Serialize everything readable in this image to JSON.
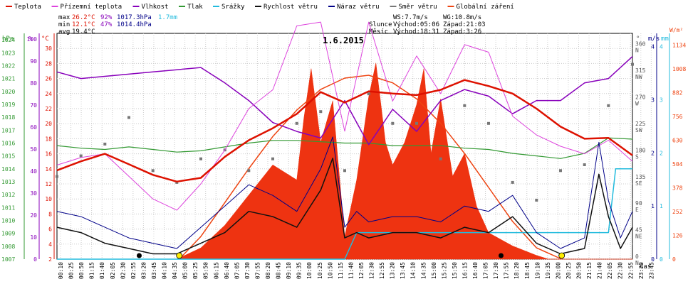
{
  "chart_data": {
    "type": "line",
    "title": "1.6.2015",
    "legend": [
      {
        "label": "Teplota",
        "color": "#dd1100"
      },
      {
        "label": "Přízemní teplota",
        "color": "#dd44dd"
      },
      {
        "label": "Vlhkost",
        "color": "#8800bb"
      },
      {
        "label": "Tlak",
        "color": "#339933"
      },
      {
        "label": "Srážky",
        "color": "#22bbdd"
      },
      {
        "label": "Rychlost větru",
        "color": "#111111"
      },
      {
        "label": "Náraz větru",
        "color": "#000088"
      },
      {
        "label": "Směr větru",
        "color": "#777777"
      },
      {
        "label": "Globální záření",
        "color": "#ee4411"
      }
    ],
    "stats": {
      "max": {
        "label": "max",
        "temp": "26.2°C",
        "hum": "92%",
        "press": "1017.3hPa",
        "rain": "1.7mm"
      },
      "min": {
        "label": "min",
        "temp": "12.1°C",
        "hum": "47%",
        "press": "1014.4hPa"
      },
      "avg": {
        "label": "avg",
        "temp": "19.4°C"
      }
    },
    "info": {
      "ws": "WS:7.7m/s",
      "wg": "WG:10.8m/s",
      "sun_label": "Slunce",
      "sun_rise": "Východ:05:06",
      "sun_set": "Západ:21:03",
      "moon_label": "Měsíc",
      "moon_rise": "Východ:18:31",
      "moon_set": "Západ:3:26"
    },
    "axes": {
      "hpa": {
        "unit": "hPa",
        "ticks": [
          "1007",
          "1008",
          "1009",
          "1010",
          "1011",
          "1012",
          "1013",
          "1014",
          "1015",
          "1016",
          "1017",
          "1018",
          "1019",
          "1020",
          "1021",
          "1022",
          "1023",
          "1024"
        ],
        "range": [
          1007,
          1024.5
        ]
      },
      "pct": {
        "unit": "%",
        "ticks": [
          "0",
          "10",
          "20",
          "30",
          "40",
          "50",
          "60",
          "70",
          "80",
          "90",
          "100"
        ],
        "range": [
          0,
          102.5
        ]
      },
      "temp": {
        "unit": "°C",
        "ticks": [
          "2",
          "4",
          "6",
          "8",
          "10",
          "12",
          "14",
          "16",
          "18",
          "20",
          "22",
          "24",
          "26",
          "28",
          "30"
        ],
        "range": [
          2,
          32
        ]
      },
      "dir": {
        "unit": "°",
        "ticks": [
          [
            "0",
            "N"
          ],
          [
            "45",
            "NE"
          ],
          [
            "90",
            "E"
          ],
          [
            "135",
            "SE"
          ],
          [
            "180",
            "S"
          ],
          [
            "225",
            "SW"
          ],
          [
            "270",
            "W"
          ],
          [
            "315",
            "NW"
          ],
          [
            "360",
            "N"
          ]
        ],
        "range": [
          0,
          382.5
        ]
      },
      "wind": {
        "unit": "m/s",
        "ticks": [
          "0",
          "1",
          "2",
          "3",
          "4"
        ],
        "range": [
          0,
          4.25
        ]
      },
      "rain": {
        "unit": "mm",
        "ticks": [
          "0",
          "1",
          "2",
          "3",
          "4"
        ],
        "range": [
          0,
          4.25
        ]
      },
      "rad": {
        "unit": "W/m²",
        "ticks": [
          "0",
          "126",
          "252",
          "378",
          "504",
          "630",
          "756",
          "882",
          "1008",
          "1134"
        ],
        "range": [
          0,
          1197
        ]
      },
      "x_label": "čas",
      "x_ticks": [
        "00:10",
        "00:25",
        "00:50",
        "01:15",
        "01:40",
        "02:05",
        "02:30",
        "02:55",
        "03:20",
        "03:45",
        "04:10",
        "04:35",
        "05:00",
        "05:25",
        "05:50",
        "06:15",
        "06:40",
        "07:05",
        "07:30",
        "07:55",
        "08:20",
        "08:45",
        "09:10",
        "09:35",
        "10:00",
        "10:25",
        "10:50",
        "11:15",
        "11:40",
        "12:05",
        "12:30",
        "12:55",
        "13:20",
        "13:45",
        "14:10",
        "14:35",
        "15:00",
        "15:25",
        "15:50",
        "16:15",
        "16:40",
        "17:05",
        "17:30",
        "17:55",
        "18:20",
        "18:45",
        "19:10",
        "19:35",
        "20:00",
        "20:25",
        "20:50",
        "21:15",
        "21:40",
        "22:05",
        "22:30",
        "22:55",
        "23:20",
        "23:45"
      ]
    },
    "series": {
      "temperature": {
        "x_hours": [
          0,
          1,
          2,
          3,
          4,
          5,
          6,
          7,
          8,
          9,
          10,
          11,
          12,
          13,
          14,
          15,
          16,
          17,
          18,
          19,
          20,
          21,
          22,
          23,
          24
        ],
        "values": [
          13.8,
          15.0,
          16.0,
          14.6,
          13.2,
          12.3,
          12.8,
          15.6,
          17.8,
          19.4,
          21.3,
          24.2,
          22.8,
          24.3,
          24.0,
          23.8,
          24.5,
          25.8,
          25.0,
          24.0,
          22.0,
          19.6,
          18.0,
          18.1,
          15.8
        ]
      },
      "ground_temperature": {
        "x_hours": [
          0,
          1,
          2,
          3,
          4,
          5,
          6,
          7,
          8,
          9,
          10,
          11,
          12,
          13,
          14,
          15,
          16,
          17,
          18,
          19,
          20,
          21,
          22,
          23,
          24
        ],
        "values": [
          14.5,
          15.5,
          16.0,
          13.0,
          10.0,
          8.5,
          12.0,
          16.5,
          22.0,
          24.5,
          33.0,
          33.5,
          19.0,
          33.5,
          23.0,
          29.0,
          24.0,
          30.5,
          29.5,
          21.0,
          18.5,
          17.0,
          16.0,
          17.8,
          15.0
        ]
      },
      "humidity": {
        "x_hours": [
          0,
          1,
          2,
          3,
          4,
          5,
          6,
          7,
          8,
          9,
          10,
          11,
          12,
          13,
          14,
          15,
          16,
          17,
          18,
          19,
          20,
          21,
          22,
          23,
          24
        ],
        "values": [
          85,
          82,
          83,
          84,
          85,
          86,
          87,
          80,
          72,
          62,
          58,
          55,
          72,
          52,
          68,
          58,
          72,
          77,
          74,
          66,
          72,
          72,
          80,
          82,
          92
        ]
      },
      "pressure": {
        "x_hours": [
          0,
          1,
          2,
          3,
          4,
          5,
          6,
          7,
          8,
          9,
          10,
          11,
          12,
          13,
          14,
          15,
          16,
          17,
          18,
          19,
          20,
          21,
          22,
          23,
          24
        ],
        "values": [
          1015.8,
          1015.6,
          1015.5,
          1015.7,
          1015.5,
          1015.3,
          1015.4,
          1015.7,
          1016.0,
          1016.2,
          1016.2,
          1016.1,
          1016.0,
          1016.0,
          1015.8,
          1015.8,
          1015.8,
          1015.6,
          1015.5,
          1015.2,
          1015.0,
          1014.8,
          1015.2,
          1016.4,
          1016.3
        ]
      },
      "rain": {
        "x_hours": [
          0,
          6,
          12,
          12.5,
          22.5,
          23,
          23.3,
          24
        ],
        "values": [
          0,
          0,
          0,
          0.5,
          0.5,
          0.5,
          1.7,
          1.7
        ]
      },
      "wind_speed": {
        "x_hours": [
          0,
          1,
          2,
          3,
          4,
          5,
          6,
          7,
          8,
          9,
          10,
          11,
          11.5,
          12,
          12.5,
          13,
          14,
          15,
          16,
          17,
          18,
          19,
          20,
          21,
          22,
          22.6,
          23,
          23.5,
          24
        ],
        "values": [
          0.6,
          0.5,
          0.3,
          0.2,
          0.1,
          0.1,
          0.3,
          0.5,
          0.9,
          0.8,
          0.6,
          1.3,
          1.9,
          0.4,
          0.5,
          0.4,
          0.5,
          0.5,
          0.4,
          0.6,
          0.5,
          0.8,
          0.3,
          0.1,
          0.2,
          1.6,
          0.8,
          0.2,
          0.6
        ]
      },
      "wind_gust": {
        "x_hours": [
          0,
          1,
          2,
          3,
          4,
          5,
          6,
          7,
          8,
          9,
          10,
          11,
          11.5,
          12,
          12.5,
          13,
          14,
          15,
          16,
          17,
          18,
          19,
          20,
          21,
          22,
          22.6,
          23,
          23.5,
          24
        ],
        "values": [
          0.9,
          0.8,
          0.6,
          0.4,
          0.3,
          0.2,
          0.6,
          1.0,
          1.4,
          1.2,
          0.9,
          1.7,
          2.3,
          0.6,
          0.9,
          0.7,
          0.8,
          0.8,
          0.7,
          1.0,
          0.9,
          1.2,
          0.5,
          0.2,
          0.4,
          2.2,
          1.1,
          0.4,
          0.9
        ]
      },
      "radiation": {
        "x_hours": [
          0,
          5,
          6,
          7,
          8,
          9,
          10,
          10.3,
          10.6,
          11,
          11.5,
          12,
          12.5,
          13,
          13.3,
          13.7,
          14,
          14.5,
          15,
          15.3,
          15.6,
          16,
          16.5,
          17,
          17.5,
          18,
          19,
          20,
          20.5,
          24
        ],
        "values": [
          0,
          0,
          60,
          180,
          340,
          500,
          420,
          750,
          1010,
          620,
          840,
          120,
          420,
          860,
          1040,
          620,
          500,
          620,
          820,
          1010,
          560,
          850,
          440,
          560,
          280,
          140,
          70,
          20,
          0,
          0
        ]
      },
      "radiation_theoretical": {
        "x_hours": [
          5.1,
          6,
          7,
          8,
          9,
          10,
          11,
          12,
          13,
          14,
          15,
          16,
          17,
          18,
          19,
          20,
          21.05
        ],
        "values": [
          0,
          120,
          300,
          480,
          650,
          790,
          900,
          960,
          975,
          935,
          850,
          720,
          560,
          380,
          200,
          60,
          0
        ]
      },
      "wind_direction": {
        "x_hours": [
          0,
          1,
          2,
          3,
          4,
          5,
          6,
          7,
          8,
          9,
          10,
          11,
          12,
          13,
          14,
          15,
          16,
          17,
          18,
          19,
          20,
          21,
          22,
          23,
          24
        ],
        "values": [
          140,
          175,
          195,
          240,
          150,
          130,
          170,
          185,
          150,
          170,
          230,
          250,
          150,
          280,
          230,
          230,
          170,
          260,
          230,
          130,
          100,
          150,
          160,
          260,
          330
        ]
      }
    },
    "markers": {
      "sun": [
        {
          "hour": 5.1,
          "color": "#ffee00"
        },
        {
          "hour": 21.05,
          "color": "#ffee00"
        }
      ],
      "moon": [
        {
          "hour": 3.43,
          "color": "#000000"
        },
        {
          "hour": 18.52,
          "color": "#000000"
        }
      ]
    }
  }
}
